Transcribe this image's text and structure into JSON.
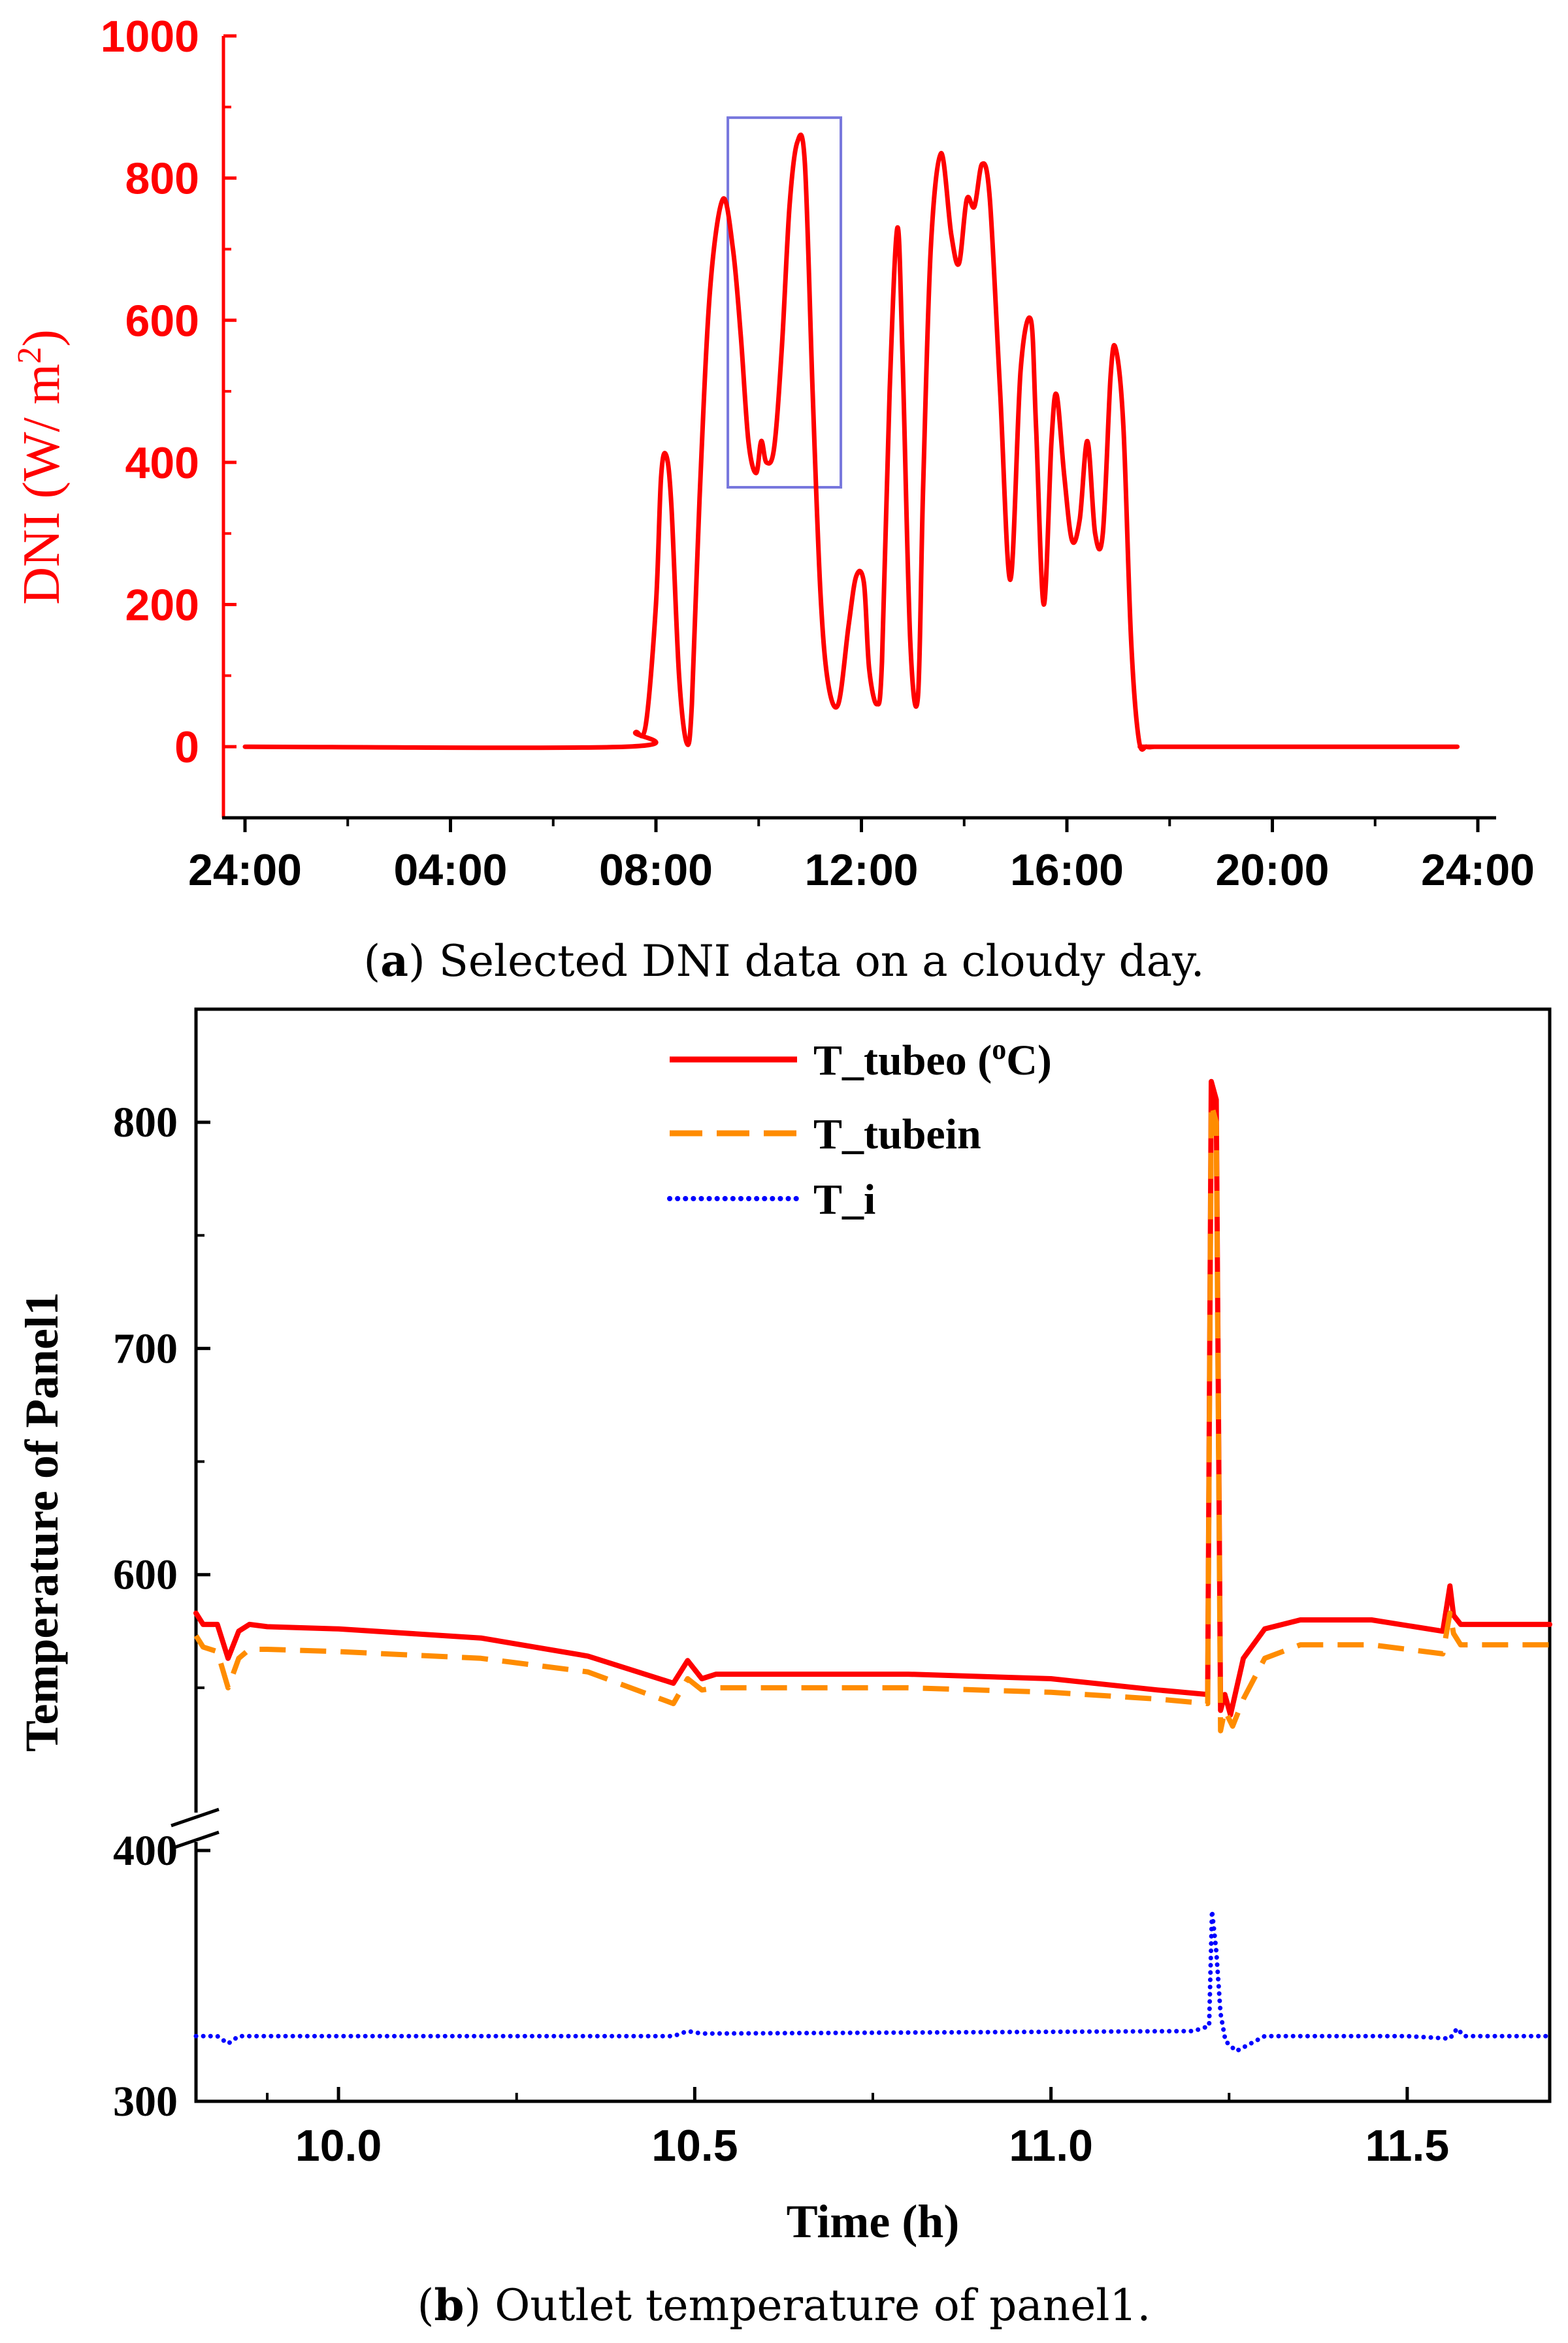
{
  "captions": {
    "a": {
      "label": "a",
      "text": "Selected DNI data on a cloudy day."
    },
    "b": {
      "label": "b",
      "text": "Outlet temperature of panel1."
    }
  },
  "chart_data": [
    {
      "id": "a",
      "type": "line",
      "title": "",
      "ylabel_main": "DNI (W/ m",
      "ylabel_sup": "2",
      "ylabel_end": ")",
      "xlabel": "",
      "x_tick_labels": [
        "24:00",
        "04:00",
        "08:00",
        "12:00",
        "16:00",
        "20:00",
        "24:00"
      ],
      "x_tick_hours": [
        0,
        4,
        8,
        12,
        16,
        20,
        24
      ],
      "ylim": [
        -100,
        1000
      ],
      "y_ticks": [
        0,
        200,
        400,
        600,
        800,
        1000
      ],
      "x_unit": "hour of day",
      "colors": {
        "axis": "#ff0000",
        "series": "#ff0000",
        "highlight_box": "#7777dd",
        "x_axis": "#000000"
      },
      "highlight_box": {
        "x": [
          9.4,
          11.6
        ],
        "y": [
          365,
          885
        ]
      },
      "series": [
        {
          "x": [
            0,
            7.4,
            7.6,
            7.8,
            8.0,
            8.1,
            8.2,
            8.3,
            8.45,
            8.6,
            8.7,
            8.85,
            9.05,
            9.3,
            9.5,
            9.65,
            9.8,
            9.95,
            10.05,
            10.15,
            10.3,
            10.45,
            10.6,
            10.75,
            10.9,
            11.05,
            11.2,
            11.35,
            11.55,
            11.75,
            11.9,
            12.05,
            12.15,
            12.3,
            12.4,
            12.55,
            12.7,
            12.8,
            12.95,
            13.1,
            13.2,
            13.35,
            13.55,
            13.75,
            13.9,
            14.05,
            14.2,
            14.35,
            14.5,
            14.7,
            14.9,
            15.1,
            15.3,
            15.4,
            15.55,
            15.7,
            15.8,
            15.95,
            16.1,
            16.25,
            16.4,
            16.55,
            16.7,
            16.85,
            16.95,
            17.1,
            17.25,
            17.4,
            17.55,
            17.7,
            17.9,
            23.6
          ],
          "values": [
            0,
            0,
            20,
            30,
            200,
            380,
            410,
            340,
            100,
            5,
            60,
            350,
            640,
            770,
            700,
            580,
            430,
            385,
            430,
            400,
            420,
            560,
            760,
            850,
            820,
            500,
            220,
            90,
            60,
            170,
            240,
            230,
            110,
            60,
            120,
            500,
            730,
            550,
            150,
            70,
            360,
            700,
            835,
            720,
            680,
            770,
            760,
            820,
            770,
            500,
            235,
            530,
            600,
            450,
            200,
            430,
            495,
            380,
            290,
            320,
            430,
            300,
            300,
            520,
            560,
            450,
            150,
            10,
            0,
            0,
            0,
            0
          ]
        }
      ]
    },
    {
      "id": "b",
      "type": "line",
      "title": "",
      "xlabel": "Time (h)",
      "ylabel": "Temperature of Panel1",
      "xlim": [
        9.8,
        11.7
      ],
      "x_ticks": [
        "10.0",
        "10.5",
        "11.0",
        "11.5"
      ],
      "y_ticks": [
        300,
        400,
        600,
        700,
        800
      ],
      "y_axis_break": [
        400,
        500
      ],
      "y_lower_range": [
        300,
        400
      ],
      "y_upper_range": [
        500,
        850
      ],
      "legend": {
        "position": "top-center"
      },
      "series": [
        {
          "name": "T_tubeo (",
          "name_sup": "o",
          "name_end": "C)",
          "color": "#ff0000",
          "style": "solid",
          "x": [
            9.8,
            9.81,
            9.83,
            9.845,
            9.86,
            9.875,
            9.9,
            10.0,
            10.2,
            10.35,
            10.47,
            10.49,
            10.51,
            10.53,
            10.6,
            10.8,
            11.0,
            11.15,
            11.22,
            11.225,
            11.232,
            11.238,
            11.244,
            11.252,
            11.27,
            11.3,
            11.35,
            11.45,
            11.55,
            11.56,
            11.565,
            11.575,
            11.6,
            11.7
          ],
          "y": [
            583,
            578,
            578,
            563,
            575,
            578,
            577,
            576,
            572,
            564,
            552,
            562,
            554,
            556,
            556,
            556,
            554,
            549,
            547,
            818,
            810,
            540,
            547,
            538,
            563,
            576,
            580,
            580,
            575,
            595,
            582,
            578,
            578,
            578
          ]
        },
        {
          "name": "T_tubein",
          "color": "#ff8c00",
          "style": "dashed",
          "x": [
            9.8,
            9.81,
            9.83,
            9.845,
            9.86,
            9.875,
            9.9,
            10.0,
            10.2,
            10.35,
            10.47,
            10.49,
            10.51,
            10.53,
            10.6,
            10.8,
            11.0,
            11.15,
            11.22,
            11.225,
            11.232,
            11.238,
            11.244,
            11.255,
            11.27,
            11.3,
            11.35,
            11.45,
            11.55,
            11.56,
            11.565,
            11.575,
            11.6,
            11.7
          ],
          "y": [
            573,
            568,
            566,
            550,
            563,
            567,
            567,
            566,
            563,
            557,
            543,
            554,
            549,
            550,
            550,
            550,
            548,
            545,
            543,
            808,
            800,
            531,
            540,
            533,
            545,
            563,
            569,
            569,
            565,
            583,
            574,
            569,
            569,
            569
          ]
        },
        {
          "name": "T_i",
          "color": "#0000ff",
          "style": "dotted",
          "x": [
            9.8,
            9.83,
            9.845,
            9.86,
            9.9,
            10.2,
            10.47,
            10.49,
            10.51,
            11.2,
            11.222,
            11.226,
            11.232,
            11.238,
            11.245,
            11.26,
            11.3,
            11.5,
            11.56,
            11.57,
            11.58,
            11.7
          ],
          "y": [
            326,
            326,
            323,
            326,
            326,
            326,
            326,
            328,
            327,
            328,
            330,
            376,
            360,
            335,
            324,
            320,
            326,
            326,
            325,
            329,
            326,
            326
          ]
        }
      ]
    }
  ]
}
